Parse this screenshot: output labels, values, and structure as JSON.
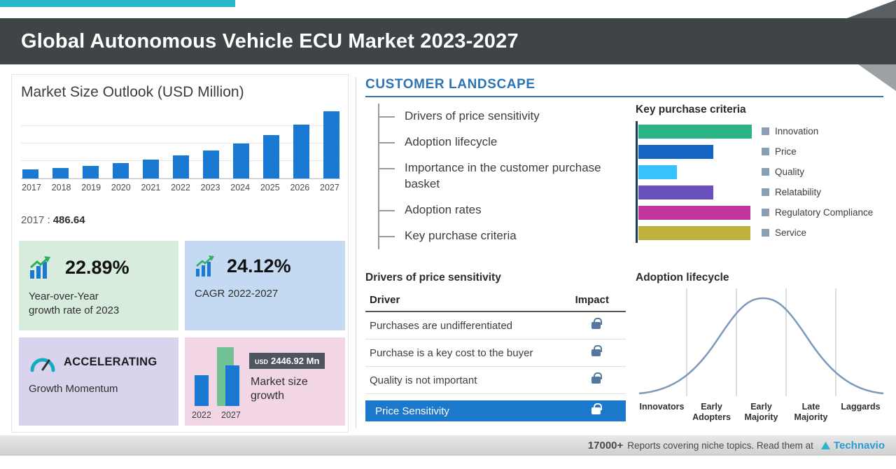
{
  "header": {
    "title": "Global Autonomous Vehicle ECU Market 2023-2027"
  },
  "chart_data": [
    {
      "name": "market-size-outlook",
      "type": "bar",
      "title": "Market Size Outlook (USD Million)",
      "categories": [
        "2017",
        "2018",
        "2019",
        "2020",
        "2021",
        "2022",
        "2023",
        "2024",
        "2025",
        "2026",
        "2027"
      ],
      "values": [
        486.64,
        588.5,
        711.6,
        860.5,
        1040.5,
        1257.5,
        1545.4,
        1923.3,
        2393.6,
        2978.9,
        3704.4
      ],
      "ylabel": "USD Million",
      "ylim": [
        0,
        4000
      ],
      "grid": true,
      "bar_color": "#1878d2",
      "base_year_label": "2017 :",
      "base_year_value": "486.64"
    },
    {
      "name": "key-purchase-criteria",
      "type": "bar",
      "orientation": "horizontal",
      "title": "Key purchase criteria",
      "categories": [
        "Innovation",
        "Price",
        "Quality",
        "Relatability",
        "Regulatory Compliance",
        "Service"
      ],
      "values": [
        100,
        66,
        34,
        66,
        99,
        99
      ],
      "colors": [
        "#2eb585",
        "#1464c4",
        "#36c3fb",
        "#6a50be",
        "#c1339e",
        "#beb23b"
      ],
      "legend_position": "right"
    },
    {
      "name": "market-size-growth",
      "type": "bar",
      "categories": [
        "2022",
        "2027"
      ],
      "values": [
        1257.5,
        3704.4
      ],
      "annotation_currency": "USD",
      "annotation_value": "2446.92 Mn",
      "caption": "Market size growth"
    },
    {
      "name": "adoption-lifecycle",
      "type": "line",
      "shape": "bell-curve",
      "title": "Adoption lifecycle",
      "categories": [
        "Innovators",
        "Early Adopters",
        "Early Majority",
        "Late Majority",
        "Laggards"
      ]
    }
  ],
  "stat_cards": {
    "yoy": {
      "value": "22.89%",
      "caption_line1": "Year-over-Year",
      "caption_line2": "growth rate of 2023"
    },
    "cagr": {
      "value": "24.12%",
      "label_prefix": "CAGR",
      "label_period": "2022-2027"
    },
    "momentum": {
      "value": "ACCELERATING",
      "caption": "Growth Momentum"
    }
  },
  "customer_landscape": {
    "title": "CUSTOMER LANDSCAPE",
    "items": [
      "Drivers of price sensitivity",
      "Adoption lifecycle",
      "Importance in the customer purchase basket",
      "Adoption rates",
      "Key purchase criteria"
    ]
  },
  "price_sensitivity": {
    "title": "Drivers of price sensitivity",
    "col_driver": "Driver",
    "col_impact": "Impact",
    "rows": [
      "Purchases are undifferentiated",
      "Purchase is a key cost to the buyer",
      "Quality is not important"
    ],
    "highlight_row": "Price Sensitivity"
  },
  "footer": {
    "count": "17000+",
    "text": "Reports covering niche topics. Read them at",
    "brand": "Technavio"
  },
  "icons": {
    "yoy_card": "bar-chart-up-arrow-icon",
    "cagr_card": "bar-chart-up-arrow-icon",
    "momentum_card": "speedometer-icon",
    "impact_cells": "lock-icon",
    "legend_marker": "square-marker",
    "brand_mark": "triangle-logo-mark"
  },
  "colors": {
    "accent_blue": "#2d74b5",
    "bar_blue": "#1878d2",
    "highlight_blue": "#1b78ca",
    "teal_accent": "#29b8cb",
    "header_band": "#3f4447",
    "card_green": "#d7ecdc",
    "card_blue": "#c4daf2",
    "card_purple": "#d9d3ed",
    "card_pink": "#f3d6e6"
  }
}
